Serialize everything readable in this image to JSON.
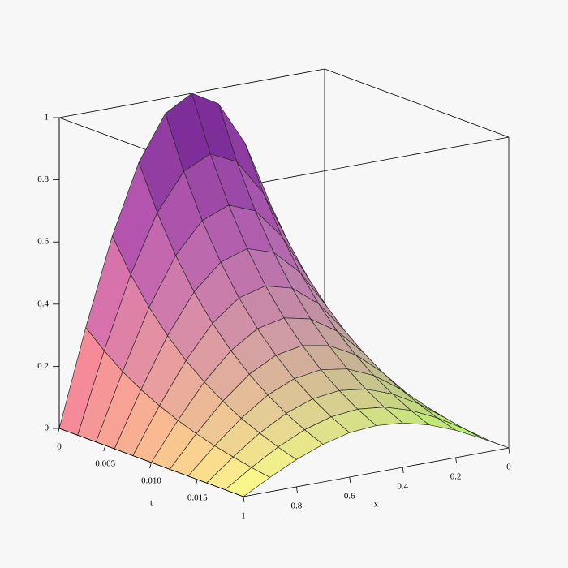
{
  "chart_data": {
    "type": "surface",
    "xlabel": "x",
    "tlabel": "t",
    "x": [
      0,
      0.1,
      0.2,
      0.3,
      0.4,
      0.5,
      0.6,
      0.7,
      0.8,
      0.9,
      1
    ],
    "t": [
      0,
      0.002,
      0.004,
      0.006,
      0.008,
      0.01,
      0.012,
      0.014,
      0.016,
      0.018,
      0.02
    ],
    "z": [
      [
        0,
        0.309,
        0.588,
        0.809,
        0.951,
        1,
        0.951,
        0.809,
        0.588,
        0.309,
        0
      ],
      [
        0,
        0.256,
        0.486,
        0.669,
        0.786,
        0.827,
        0.786,
        0.669,
        0.486,
        0.256,
        0
      ],
      [
        0,
        0.211,
        0.402,
        0.553,
        0.65,
        0.684,
        0.65,
        0.553,
        0.402,
        0.211,
        0
      ],
      [
        0,
        0.175,
        0.333,
        0.458,
        0.538,
        0.566,
        0.538,
        0.458,
        0.333,
        0.175,
        0
      ],
      [
        0,
        0.145,
        0.275,
        0.379,
        0.445,
        0.468,
        0.445,
        0.379,
        0.275,
        0.145,
        0
      ],
      [
        0,
        0.12,
        0.228,
        0.313,
        0.368,
        0.387,
        0.368,
        0.313,
        0.228,
        0.12,
        0
      ],
      [
        0,
        0.099,
        0.188,
        0.259,
        0.304,
        0.32,
        0.304,
        0.259,
        0.188,
        0.099,
        0
      ],
      [
        0,
        0.082,
        0.155,
        0.214,
        0.251,
        0.264,
        0.251,
        0.214,
        0.155,
        0.082,
        0
      ],
      [
        0,
        0.068,
        0.129,
        0.177,
        0.208,
        0.219,
        0.208,
        0.177,
        0.129,
        0.068,
        0
      ],
      [
        0,
        0.056,
        0.106,
        0.146,
        0.172,
        0.181,
        0.172,
        0.146,
        0.106,
        0.056,
        0
      ],
      [
        0,
        0.046,
        0.088,
        0.121,
        0.143,
        0.15,
        0.143,
        0.121,
        0.088,
        0.046,
        0
      ]
    ],
    "xlim": [
      0,
      1
    ],
    "tlim": [
      0,
      0.02
    ],
    "zlim": [
      0,
      1
    ],
    "xticks": [
      0,
      0.2,
      0.4,
      0.6,
      0.8,
      1
    ],
    "tticks": [
      0,
      0.005,
      {
        "value": 0.01,
        "label": "0.010"
      },
      0.015
    ],
    "zticks": [
      0,
      0.2,
      0.4,
      0.6,
      0.8,
      1
    ]
  }
}
